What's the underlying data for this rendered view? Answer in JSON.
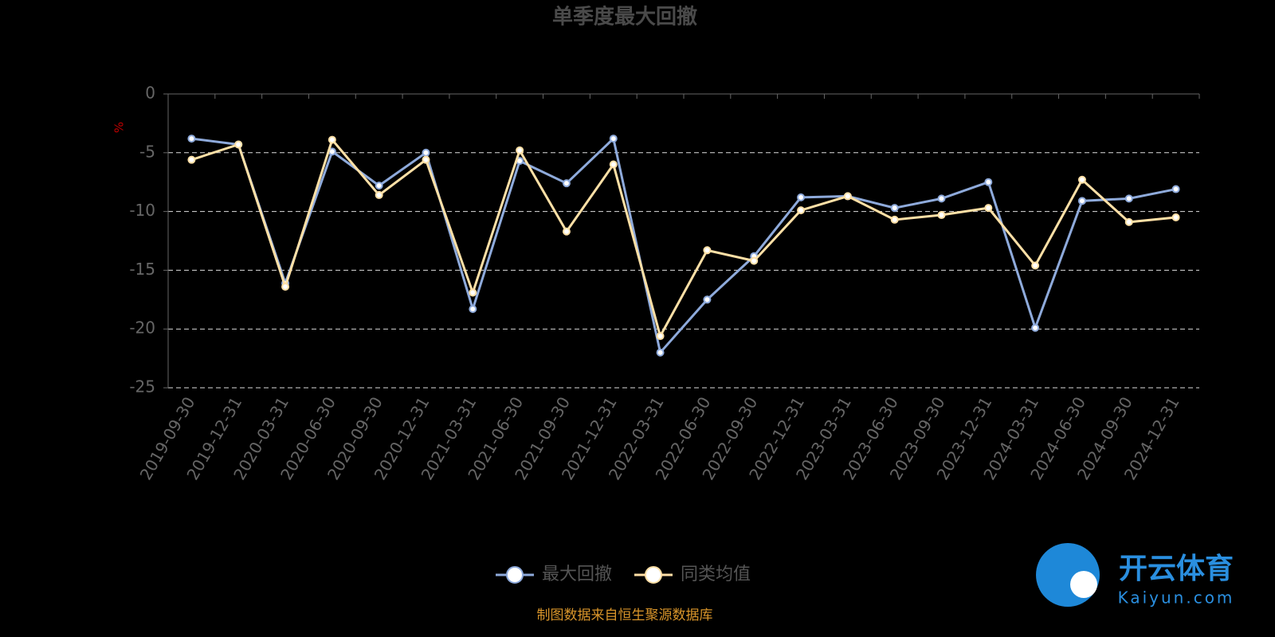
{
  "chart_data": {
    "type": "line",
    "title": "单季度最大回撤",
    "y_label": "%",
    "categories": [
      "2019-09-30",
      "2019-12-31",
      "2020-03-31",
      "2020-06-30",
      "2020-09-30",
      "2020-12-31",
      "2021-03-31",
      "2021-06-30",
      "2021-09-30",
      "2021-12-31",
      "2022-03-31",
      "2022-06-30",
      "2022-09-30",
      "2022-12-31",
      "2023-03-31",
      "2023-06-30",
      "2023-09-30",
      "2023-12-31",
      "2024-03-31",
      "2024-06-30",
      "2024-09-30",
      "2024-12-31"
    ],
    "series": [
      {
        "name": "最大回撤",
        "color": "#8eaadb",
        "values": [
          -3.8,
          -4.3,
          -16.1,
          -4.9,
          -7.8,
          -5.0,
          -18.3,
          -5.7,
          -7.6,
          -3.8,
          -22.0,
          -17.5,
          -13.8,
          -8.8,
          -8.7,
          -9.7,
          -8.9,
          -7.5,
          -19.9,
          -9.1,
          -8.9,
          -8.1
        ]
      },
      {
        "name": "同类均值",
        "color": "#ffe0a6",
        "values": [
          -5.6,
          -4.3,
          -16.4,
          -3.9,
          -8.6,
          -5.6,
          -16.9,
          -4.8,
          -11.7,
          -6.0,
          -20.6,
          -13.3,
          -14.2,
          -9.9,
          -8.7,
          -10.7,
          -10.3,
          -9.7,
          -14.6,
          -7.3,
          -10.9,
          -10.5
        ]
      }
    ],
    "ylim": [
      -25,
      0
    ],
    "yticks": [
      0,
      -5,
      -10,
      -15,
      -20,
      -25
    ],
    "grid": true,
    "legend": "bottom",
    "source": "制图数据来自恒生聚源数据库",
    "watermark": {
      "brand": "开云体育",
      "site": "Kaiyun.com"
    }
  }
}
